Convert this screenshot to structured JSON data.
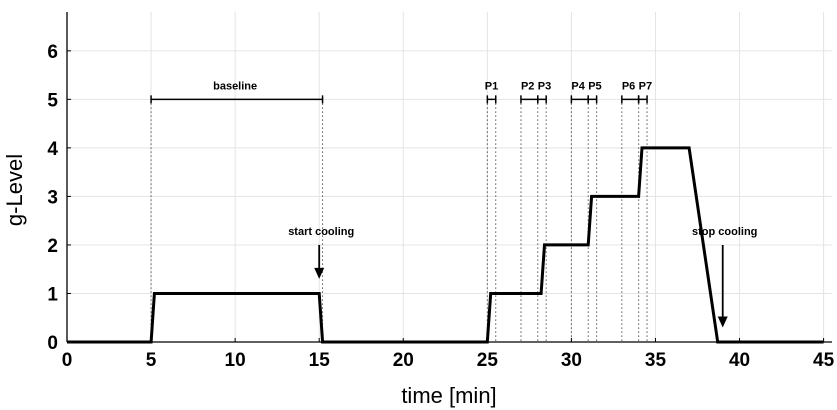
{
  "chart_data": {
    "type": "line",
    "xlabel": "time [min]",
    "ylabel": "g-Level",
    "xlim": [
      0,
      45.5
    ],
    "ylim": [
      0,
      6.8
    ],
    "xticks": [
      0,
      5,
      10,
      15,
      20,
      25,
      30,
      35,
      40,
      45
    ],
    "yticks": [
      0,
      1,
      2,
      3,
      4,
      5,
      6
    ],
    "grid": true,
    "series": [
      {
        "x": [
          0,
          5,
          5.2,
          15,
          15.2,
          25,
          25.2,
          28.2,
          28.4,
          31,
          31.2,
          34,
          34.2,
          37,
          38.7,
          45
        ],
        "y": [
          0,
          0,
          1,
          1,
          0,
          0,
          1,
          1,
          2,
          2,
          3,
          3,
          4,
          4,
          0,
          0
        ]
      }
    ],
    "brackets": [
      {
        "label": "baseline",
        "x0": 5,
        "x1": 15.2,
        "y": 5,
        "label_x": 10
      },
      {
        "label": "P1",
        "x0": 25,
        "x1": 25.5,
        "y": 5,
        "label_x": 25.25
      },
      {
        "label": "P2",
        "x0": 27,
        "x1": 28,
        "y": 5,
        "label_x": 27.4
      },
      {
        "label": "P3",
        "x0": 28,
        "x1": 28.5,
        "y": 5,
        "label_x": 28.4
      },
      {
        "label": "P4",
        "x0": 30,
        "x1": 31,
        "y": 5,
        "label_x": 30.4
      },
      {
        "label": "P5",
        "x0": 31,
        "x1": 31.5,
        "y": 5,
        "label_x": 31.4
      },
      {
        "label": "P6",
        "x0": 33,
        "x1": 34,
        "y": 5,
        "label_x": 33.4
      },
      {
        "label": "P7",
        "x0": 34,
        "x1": 34.5,
        "y": 5,
        "label_x": 34.4
      }
    ],
    "reference_lines": [
      5,
      15.2,
      25,
      25.5,
      27,
      28,
      28.5,
      30,
      31,
      31.5,
      33,
      34,
      34.5
    ],
    "arrows": [
      {
        "label": "start cooling",
        "x": 15,
        "y_top": 2,
        "y_bottom": 1.3,
        "label_y": 2.2
      },
      {
        "label": "stop cooling",
        "x": 39,
        "y_top": 2,
        "y_bottom": 0.3,
        "label_y": 2.2
      }
    ]
  }
}
